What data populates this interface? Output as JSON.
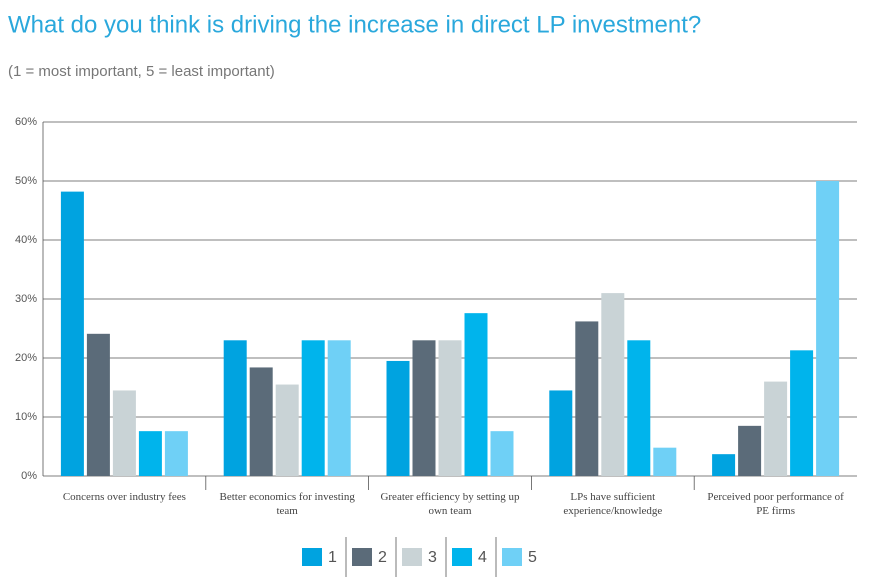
{
  "chart_data": {
    "type": "bar",
    "title": "What do you think is driving the increase in direct LP investment?",
    "subtitle": "(1 = most important, 5 = least important)",
    "categories": [
      "Concerns over industry fees",
      "Better economics for investing team",
      "Greater efficiency by setting up own team",
      "LPs have sufficient experience/knowledge",
      "Perceived poor performance of PE firms"
    ],
    "series": [
      {
        "name": "1",
        "color": "#00a3e0",
        "values": [
          48.2,
          23,
          19.5,
          14.5,
          3.7
        ]
      },
      {
        "name": "2",
        "color": "#5b6b79",
        "values": [
          24.1,
          18.4,
          23,
          26.2,
          8.5
        ]
      },
      {
        "name": "3",
        "color": "#c9d3d6",
        "values": [
          14.5,
          15.5,
          23,
          31,
          16
        ]
      },
      {
        "name": "4",
        "color": "#00b4ec",
        "values": [
          7.6,
          23,
          27.6,
          23,
          21.3
        ]
      },
      {
        "name": "5",
        "color": "#6fd0f6",
        "values": [
          7.6,
          23,
          7.6,
          4.8,
          50
        ]
      }
    ],
    "ylim": [
      0,
      60
    ],
    "yticks": [
      {
        "value": 0,
        "label": "0%"
      },
      {
        "value": 10,
        "label": "10%"
      },
      {
        "value": 20,
        "label": "20%"
      },
      {
        "value": 30,
        "label": "30%"
      },
      {
        "value": 40,
        "label": "40%"
      },
      {
        "value": 50,
        "label": "50%"
      },
      {
        "value": 60,
        "label": "60%"
      }
    ],
    "grid": true
  }
}
